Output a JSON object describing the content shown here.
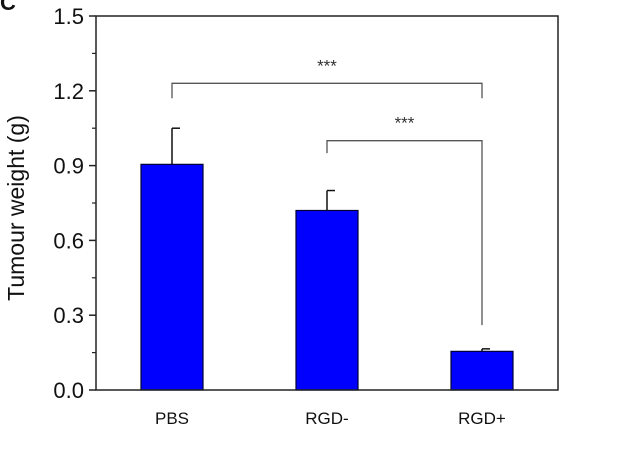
{
  "panel_letter": "C",
  "chart_data": {
    "type": "bar",
    "categories": [
      "PBS",
      "RGD-",
      "RGD+"
    ],
    "values": [
      0.905,
      0.72,
      0.155
    ],
    "errors": [
      0.145,
      0.08,
      0.01
    ],
    "xlabel": "",
    "ylabel": "Tumour weight (g)",
    "ylim": [
      0,
      1.5
    ],
    "yticks": [
      "0.0",
      "0.3",
      "0.6",
      "0.9",
      "1.2",
      "1.5"
    ],
    "bar_color": "#0000ff",
    "grid": false,
    "significance": [
      {
        "from": 0,
        "to": 2,
        "label": "***",
        "y": 1.23,
        "left_end": 1.17,
        "right_end": 1.17
      },
      {
        "from": 1,
        "to": 2,
        "label": "***",
        "y": 1.0,
        "left_end": 0.95,
        "right_end": 0.26
      }
    ]
  }
}
